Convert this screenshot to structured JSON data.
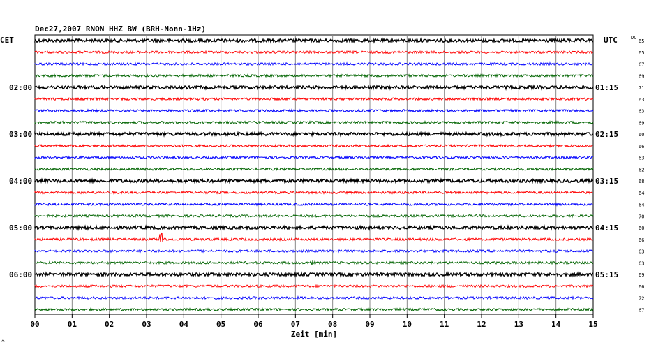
{
  "chart_data": {
    "type": "line",
    "title": "Dec27,2007   RNON HHZ BW (BRH-Nonn-1Hz)",
    "xlabel": "Zeit [min]",
    "x_ticks": [
      "00",
      "01",
      "02",
      "03",
      "04",
      "05",
      "06",
      "07",
      "08",
      "09",
      "10",
      "11",
      "12",
      "13",
      "14",
      "15"
    ],
    "xlim": [
      0,
      15
    ],
    "grid": true,
    "left_axis_label": "CET",
    "right_axis_label": "UTC",
    "dc_label": "DC",
    "left_hour_labels": [
      "02:00",
      "03:00",
      "04:00",
      "05:00",
      "06:00"
    ],
    "right_hour_labels": [
      "01:15",
      "02:15",
      "03:15",
      "04:15",
      "05:15"
    ],
    "trace_colors": [
      "#000000",
      "#ff0000",
      "#0000ff",
      "#006400"
    ],
    "dc_values": [
      "65",
      "65",
      "67",
      "69",
      "71",
      "63",
      "63",
      "69",
      "60",
      "66",
      "63",
      "62",
      "68",
      "64",
      "64",
      "70",
      "60",
      "66",
      "63",
      "63",
      "69",
      "66",
      "72",
      "67"
    ],
    "events": [
      {
        "trace": 17,
        "minute": 3.4,
        "amplitude": "large"
      },
      {
        "trace": 19,
        "minute": 7.45,
        "amplitude": "small"
      }
    ]
  },
  "footer_mark": "^"
}
